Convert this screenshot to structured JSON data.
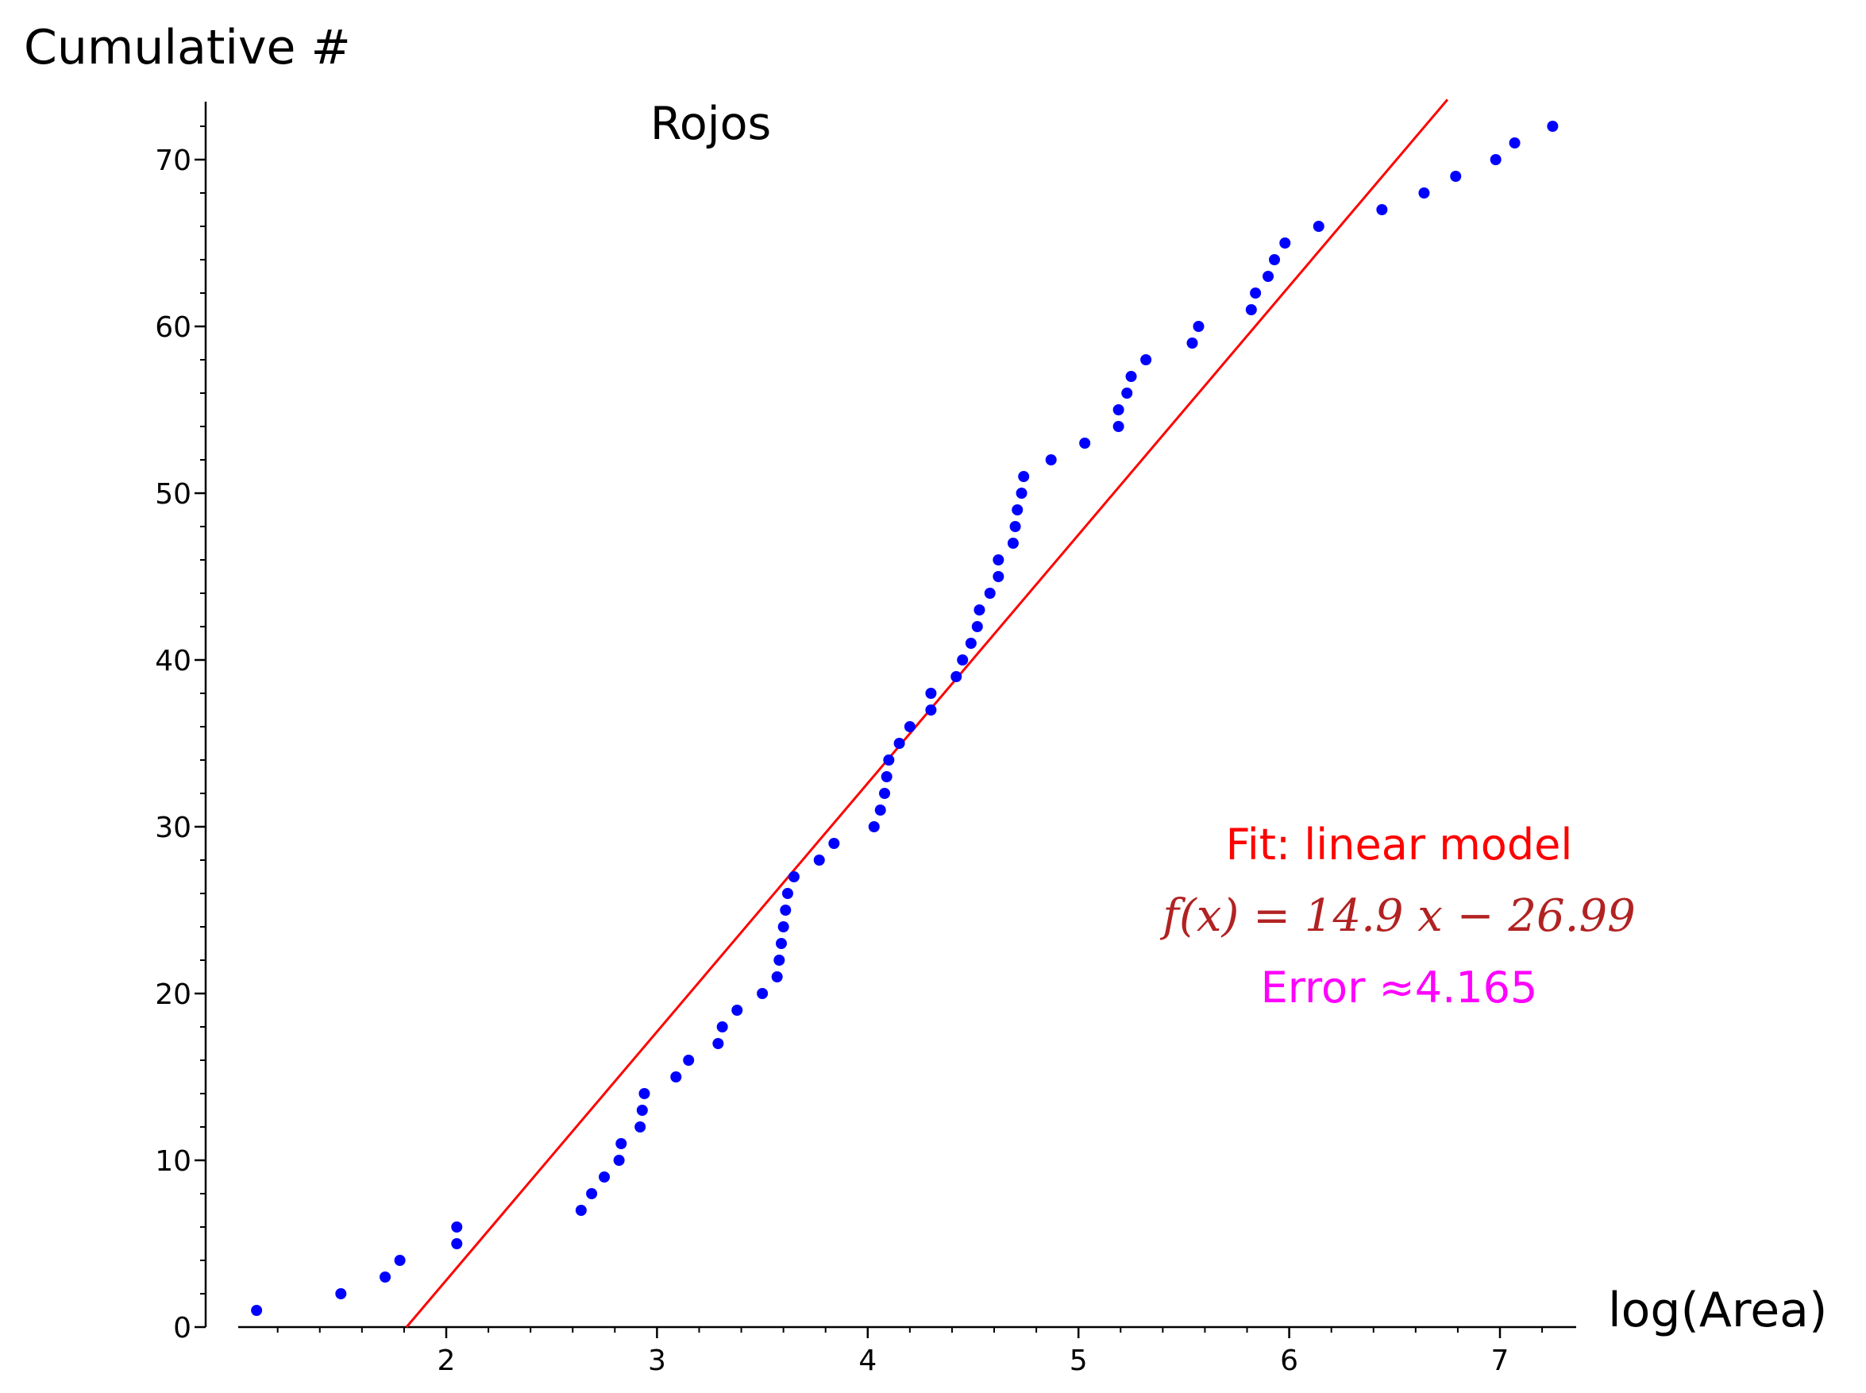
{
  "chart_data": {
    "type": "scatter",
    "title": "Rojos",
    "xlabel": "log(Area)",
    "ylabel": "Cumulative #",
    "xlim": [
      1.0,
      7.35
    ],
    "ylim": [
      0,
      73.5
    ],
    "xticks": [
      2,
      3,
      4,
      5,
      6,
      7
    ],
    "yticks": [
      0,
      10,
      20,
      30,
      40,
      50,
      60,
      70
    ],
    "xtick_labels": [
      "2",
      "3",
      "4",
      "5",
      "6",
      "7"
    ],
    "ytick_labels": [
      "0",
      "10",
      "20",
      "30",
      "40",
      "50",
      "60",
      "70"
    ],
    "grid": false,
    "points": [
      [
        1.1,
        1
      ],
      [
        1.5,
        2
      ],
      [
        1.71,
        3
      ],
      [
        1.78,
        4
      ],
      [
        2.05,
        5
      ],
      [
        2.05,
        6
      ],
      [
        2.64,
        7
      ],
      [
        2.69,
        8
      ],
      [
        2.75,
        9
      ],
      [
        2.82,
        10
      ],
      [
        2.83,
        11
      ],
      [
        2.92,
        12
      ],
      [
        2.93,
        13
      ],
      [
        2.94,
        14
      ],
      [
        3.09,
        15
      ],
      [
        3.15,
        16
      ],
      [
        3.29,
        17
      ],
      [
        3.31,
        18
      ],
      [
        3.38,
        19
      ],
      [
        3.5,
        20
      ],
      [
        3.57,
        21
      ],
      [
        3.58,
        22
      ],
      [
        3.59,
        23
      ],
      [
        3.6,
        24
      ],
      [
        3.61,
        25
      ],
      [
        3.62,
        26
      ],
      [
        3.65,
        27
      ],
      [
        3.77,
        28
      ],
      [
        3.84,
        29
      ],
      [
        4.03,
        30
      ],
      [
        4.06,
        31
      ],
      [
        4.08,
        32
      ],
      [
        4.09,
        33
      ],
      [
        4.1,
        34
      ],
      [
        4.15,
        35
      ],
      [
        4.2,
        36
      ],
      [
        4.3,
        37
      ],
      [
        4.3,
        38
      ],
      [
        4.42,
        39
      ],
      [
        4.45,
        40
      ],
      [
        4.49,
        41
      ],
      [
        4.52,
        42
      ],
      [
        4.53,
        43
      ],
      [
        4.58,
        44
      ],
      [
        4.62,
        45
      ],
      [
        4.62,
        46
      ],
      [
        4.69,
        47
      ],
      [
        4.7,
        48
      ],
      [
        4.71,
        49
      ],
      [
        4.73,
        50
      ],
      [
        4.74,
        51
      ],
      [
        4.87,
        52
      ],
      [
        5.03,
        53
      ],
      [
        5.19,
        54
      ],
      [
        5.19,
        55
      ],
      [
        5.23,
        56
      ],
      [
        5.25,
        57
      ],
      [
        5.32,
        58
      ],
      [
        5.54,
        59
      ],
      [
        5.57,
        60
      ],
      [
        5.82,
        61
      ],
      [
        5.84,
        62
      ],
      [
        5.9,
        63
      ],
      [
        5.93,
        64
      ],
      [
        5.98,
        65
      ],
      [
        6.14,
        66
      ],
      [
        6.44,
        67
      ],
      [
        6.64,
        68
      ],
      [
        6.79,
        69
      ],
      [
        6.98,
        70
      ],
      [
        7.07,
        71
      ],
      [
        7.25,
        72
      ]
    ],
    "fit_line": {
      "slope": 14.9,
      "intercept": -26.99
    },
    "annotations": {
      "fit_label": "Fit: linear model",
      "formula": "f(x) = 14.9 x − 26.99",
      "error": "Error ≈4.165"
    },
    "colors": {
      "points": "#0000ff",
      "fit_line": "#ff0000",
      "fit_label": "#ff0000",
      "formula": "#b22222",
      "error": "#ff00ff",
      "axes": "#000000"
    }
  }
}
